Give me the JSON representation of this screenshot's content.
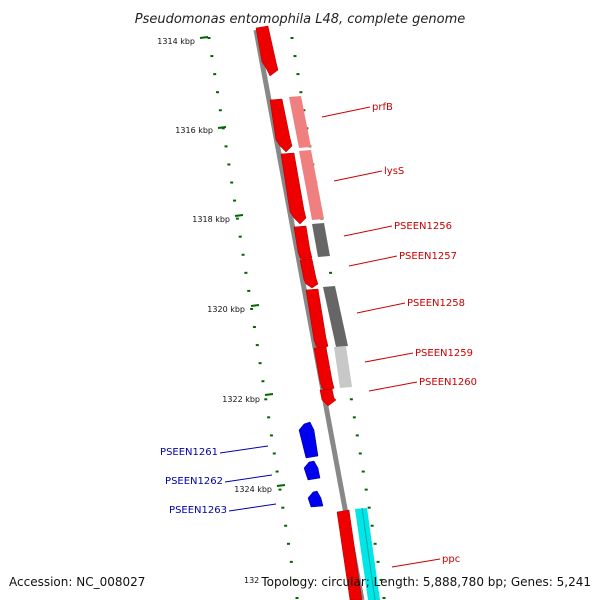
{
  "title": "Pseudomonas entomophila L48, complete genome",
  "footer": {
    "accession": "Accession: NC_008027",
    "topology": "Topology: circular; Length: 5,888,780 bp; Genes: 5,241",
    "cut_tick_label": "132"
  },
  "ticks": [
    "1314 kbp",
    "1316 kbp",
    "1318 kbp",
    "1320 kbp",
    "1322 kbp",
    "1324 kbp"
  ],
  "genes_forward": [
    {
      "name": "prfB",
      "color": "#cc0000"
    },
    {
      "name": "lysS",
      "color": "#cc0000"
    },
    {
      "name": "PSEEN1256",
      "color": "#cc0000"
    },
    {
      "name": "PSEEN1257",
      "color": "#cc0000"
    },
    {
      "name": "PSEEN1258",
      "color": "#cc0000"
    },
    {
      "name": "PSEEN1259",
      "color": "#cc0000"
    },
    {
      "name": "PSEEN1260",
      "color": "#cc0000"
    },
    {
      "name": "ppc",
      "color": "#cc0000"
    }
  ],
  "genes_reverse": [
    {
      "name": "PSEEN1261",
      "color": "#0000aa"
    },
    {
      "name": "PSEEN1262",
      "color": "#0000aa"
    },
    {
      "name": "PSEEN1263",
      "color": "#0000aa"
    }
  ],
  "colors": {
    "backbone": "#888888",
    "forward_cds": "#ee0000",
    "reverse_cds": "#0000ee",
    "tick": "#006600",
    "cog_pink": "#f08080",
    "cog_gray_dark": "#666666",
    "cog_gray_light": "#c8c8c8",
    "cog_cyan": "#00e5e5"
  }
}
